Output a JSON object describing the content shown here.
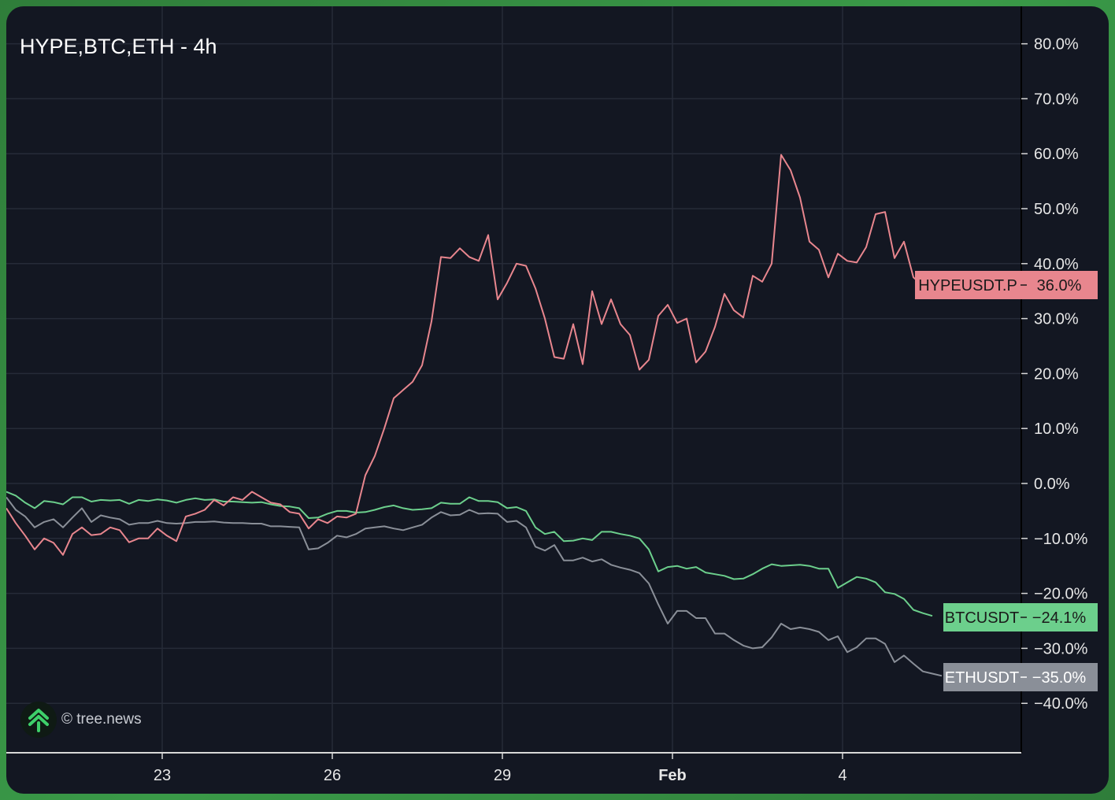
{
  "title": "HYPE,BTC,ETH - 4h",
  "watermark": "© tree.news",
  "colors": {
    "background": "#131722",
    "grid": "#262b38",
    "hype": "#e8868e",
    "btc": "#6ccf8c",
    "eth": "#8a8f98"
  },
  "chart_data": {
    "type": "line",
    "title": "HYPE,BTC,ETH - 4h",
    "xlabel": "",
    "ylabel": "",
    "ylim": [
      -50,
      85
    ],
    "y_ticks": [
      80,
      70,
      60,
      50,
      40,
      30,
      20,
      10,
      0,
      -10,
      -20,
      -30,
      -40
    ],
    "y_tick_labels": [
      "80.0%",
      "70.0%",
      "60.0%",
      "50.0%",
      "40.0%",
      "30.0%",
      "20.0%",
      "10.0%",
      "0.0%",
      "−10.0%",
      "−20.0%",
      "−30.0%",
      "−40.0%"
    ],
    "x_tick_labels": [
      "23",
      "26",
      "29",
      "Feb",
      "4"
    ],
    "x_tick_indices": [
      16,
      34,
      52,
      70,
      88
    ],
    "grid": true,
    "legend": "none",
    "series": [
      {
        "name": "HYPEUSDT.P",
        "last_label": "36.0%",
        "values": [
          -4.5,
          -7.2,
          -9.5,
          -12,
          -10,
          -10.8,
          -13,
          -9.2,
          -8,
          -9.4,
          -9.2,
          -8,
          -8.5,
          -10.7,
          -10,
          -10,
          -8.2,
          -9.5,
          -10.5,
          -6,
          -5.5,
          -4.8,
          -3,
          -4,
          -2.5,
          -3,
          -1.5,
          -2.5,
          -3.5,
          -3.8,
          -5.2,
          -5.5,
          -8.2,
          -6.5,
          -7.2,
          -6,
          -6.2,
          -5.5,
          1.5,
          5,
          10,
          15.5,
          17,
          18.5,
          21.5,
          29.5,
          41.2,
          41,
          42.8,
          41.2,
          40.5,
          45.2,
          33.5,
          36.5,
          40,
          39.6,
          35.5,
          30,
          23,
          22.7,
          29,
          21.7,
          35,
          29,
          33.5,
          29,
          27,
          20.7,
          22.5,
          30.5,
          32.5,
          29.2,
          30,
          22,
          24,
          28.5,
          34.5,
          31.5,
          30.2,
          37.8,
          36.7,
          40,
          59.8,
          57,
          52,
          44,
          42.5,
          37.5,
          41.8,
          40.5,
          40.2,
          43,
          49,
          49.4,
          41,
          44,
          37.5,
          36
        ]
      },
      {
        "name": "BTCUSDT",
        "last_label": "−24.1%",
        "values": [
          -1.5,
          -2.2,
          -3.5,
          -4.5,
          -3.2,
          -3.4,
          -3.8,
          -2.5,
          -2.5,
          -3.3,
          -3,
          -3.1,
          -3,
          -3.7,
          -3,
          -3.2,
          -2.9,
          -3.1,
          -3.5,
          -3,
          -2.7,
          -3,
          -2.9,
          -3.3,
          -3.3,
          -3.4,
          -3.5,
          -3.4,
          -3.8,
          -4.1,
          -4.2,
          -4.5,
          -6.3,
          -6.2,
          -5.5,
          -5,
          -5,
          -5.3,
          -5.2,
          -4.8,
          -4.3,
          -4,
          -4.5,
          -4.8,
          -4.7,
          -4.5,
          -3.5,
          -3.7,
          -3.7,
          -2.5,
          -3.2,
          -3.2,
          -3.4,
          -4.5,
          -4.3,
          -5,
          -8,
          -9.2,
          -8.8,
          -10.5,
          -10.4,
          -10,
          -10.3,
          -8.8,
          -8.8,
          -9.2,
          -9.5,
          -10,
          -12,
          -16,
          -15.2,
          -15,
          -15.5,
          -15.2,
          -16.2,
          -16.5,
          -16.8,
          -17.4,
          -17.3,
          -16.5,
          -15.5,
          -14.7,
          -15,
          -14.9,
          -14.8,
          -15,
          -15.5,
          -15.5,
          -19,
          -18,
          -17,
          -17.3,
          -18,
          -19.8,
          -20.1,
          -21,
          -23,
          -23.6,
          -24.1
        ]
      },
      {
        "name": "ETHUSDT",
        "last_label": "−35.0%",
        "values": [
          -2.5,
          -4.8,
          -6,
          -8,
          -7,
          -6.5,
          -8,
          -6.2,
          -4.5,
          -7,
          -5.8,
          -6.2,
          -6.5,
          -7.5,
          -7.2,
          -7.2,
          -6.8,
          -7.2,
          -7.3,
          -7.2,
          -7,
          -7,
          -6.9,
          -7.1,
          -7.2,
          -7.2,
          -7.3,
          -7.3,
          -7.8,
          -7.8,
          -7.9,
          -8,
          -12,
          -11.8,
          -10.8,
          -9.5,
          -9.8,
          -9.2,
          -8.2,
          -8,
          -7.8,
          -8.2,
          -8.5,
          -8,
          -7.5,
          -6.2,
          -5.2,
          -5.8,
          -5.7,
          -4.8,
          -5.5,
          -5.4,
          -5.5,
          -7,
          -6.8,
          -8,
          -11.5,
          -12.2,
          -11.2,
          -14,
          -14,
          -13.5,
          -14.2,
          -13.8,
          -14.8,
          -15.3,
          -15.7,
          -16.3,
          -18.2,
          -22,
          -25.5,
          -23.2,
          -23.2,
          -24.5,
          -24.5,
          -27.3,
          -27.3,
          -28.5,
          -29.5,
          -30,
          -29.8,
          -28,
          -25.5,
          -26.5,
          -26.2,
          -26.5,
          -27,
          -28.5,
          -27.8,
          -30.7,
          -29.8,
          -28.2,
          -28.2,
          -29.2,
          -32.5,
          -31.3,
          -32.8,
          -34.2,
          -34.6,
          -35
        ]
      }
    ]
  }
}
